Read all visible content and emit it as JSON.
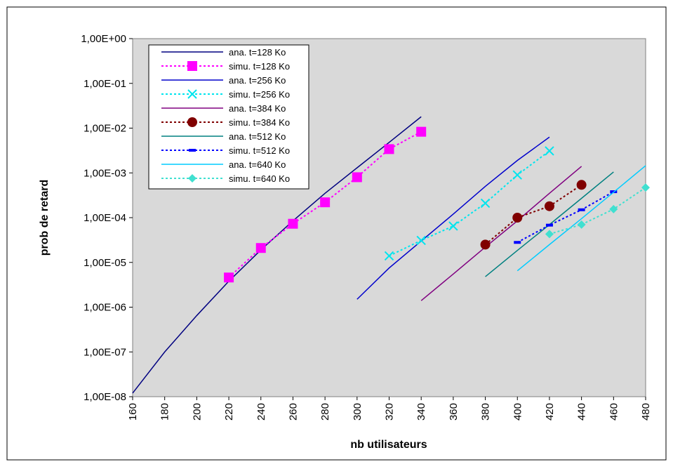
{
  "chart_data": {
    "type": "line",
    "title": "",
    "xlabel": "nb utilisateurs",
    "ylabel": "prob de retard",
    "x_ticks": [
      "160",
      "180",
      "200",
      "220",
      "240",
      "260",
      "280",
      "300",
      "320",
      "340",
      "360",
      "380",
      "400",
      "420",
      "440",
      "460",
      "480"
    ],
    "xlim": [
      160,
      480
    ],
    "y_scale": "log",
    "y_ticks": [
      "1,00E+00",
      "1,00E-01",
      "1,00E-02",
      "1,00E-03",
      "1,00E-04",
      "1,00E-05",
      "1,00E-06",
      "1,00E-07",
      "1,00E-08"
    ],
    "ylim": [
      1e-08,
      1
    ],
    "grid": false,
    "plot_background": "#d9d9d9",
    "legend_position": "top-left",
    "series": [
      {
        "name": "ana. t=128 Ko",
        "color": "#000080",
        "style": "solid",
        "marker": "none",
        "x": [
          160,
          180,
          200,
          220,
          240,
          260,
          280,
          300,
          320,
          340
        ],
        "y": [
          1.2e-08,
          1e-07,
          6.5e-07,
          3.8e-06,
          1.9e-05,
          8.5e-05,
          0.00035,
          0.0013,
          0.0048,
          0.018
        ]
      },
      {
        "name": "simu. t=128 Ko",
        "color": "#ff00ff",
        "style": "dotted",
        "marker": "square",
        "x": [
          220,
          240,
          260,
          280,
          300,
          320,
          340
        ],
        "y": [
          4.6e-06,
          2.1e-05,
          7.3e-05,
          0.00022,
          0.0008,
          0.0034,
          0.0083
        ]
      },
      {
        "name": "ana. t=256 Ko",
        "color": "#0000cc",
        "style": "solid",
        "marker": "none",
        "x": [
          300,
          320,
          340,
          360,
          380,
          400,
          420
        ],
        "y": [
          1.5e-06,
          7.5e-06,
          3e-05,
          0.00012,
          0.0005,
          0.0019,
          0.0063
        ]
      },
      {
        "name": "simu. t=256 Ko",
        "color": "#00e5ee",
        "style": "dotted",
        "marker": "x",
        "x": [
          320,
          340,
          360,
          380,
          400,
          420
        ],
        "y": [
          1.4e-05,
          3.1e-05,
          6.5e-05,
          0.00021,
          0.0009,
          0.0031
        ]
      },
      {
        "name": "ana. t=384 Ko",
        "color": "#800080",
        "style": "solid",
        "marker": "none",
        "x": [
          340,
          360,
          380,
          400,
          420,
          440
        ],
        "y": [
          1.4e-06,
          5.5e-06,
          2.2e-05,
          8.5e-05,
          0.00035,
          0.0014
        ]
      },
      {
        "name": "simu. t=384 Ko",
        "color": "#800000",
        "style": "dotted",
        "marker": "circle",
        "x": [
          380,
          400,
          420,
          440
        ],
        "y": [
          2.5e-05,
          0.0001,
          0.00018,
          0.00054
        ]
      },
      {
        "name": "ana. t=512 Ko",
        "color": "#008080",
        "style": "solid",
        "marker": "none",
        "x": [
          380,
          400,
          420,
          440,
          460
        ],
        "y": [
          4.8e-06,
          1.85e-05,
          7e-05,
          0.00027,
          0.00105
        ]
      },
      {
        "name": "simu. t=512 Ko",
        "color": "#0000ff",
        "style": "dotted",
        "marker": "dash",
        "x": [
          400,
          420,
          440,
          460
        ],
        "y": [
          2.8e-05,
          6.8e-05,
          0.00015,
          0.00038
        ]
      },
      {
        "name": "ana. t=640 Ko",
        "color": "#00ccff",
        "style": "solid",
        "marker": "none",
        "x": [
          400,
          420,
          440,
          460,
          480
        ],
        "y": [
          6.5e-06,
          2.5e-05,
          9.5e-05,
          0.00037,
          0.00145
        ]
      },
      {
        "name": "simu. t=640 Ko",
        "color": "#40e0d0",
        "style": "dotted",
        "marker": "diamond",
        "x": [
          420,
          440,
          460,
          480
        ],
        "y": [
          4.3e-05,
          7e-05,
          0.000155,
          0.00047
        ]
      }
    ]
  }
}
